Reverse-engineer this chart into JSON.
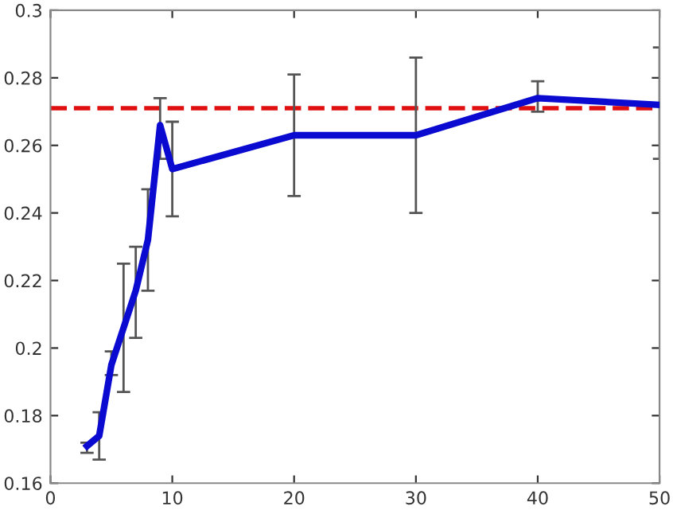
{
  "chart_data": {
    "type": "line",
    "x": [
      3,
      4,
      5,
      6,
      7,
      8,
      9,
      10,
      20,
      30,
      40,
      50
    ],
    "series": [
      {
        "color": "#0a0ad0",
        "values": [
          0.171,
          0.174,
          0.195,
          0.206,
          0.217,
          0.232,
          0.266,
          0.253,
          0.263,
          0.263,
          0.274,
          0.272
        ],
        "errors": [
          [
            0.169,
            0.172
          ],
          [
            0.167,
            0.181
          ],
          [
            0.192,
            0.199
          ],
          [
            0.187,
            0.225
          ],
          [
            0.203,
            0.23
          ],
          [
            0.217,
            0.247
          ],
          [
            0.256,
            0.274
          ],
          [
            0.239,
            0.267
          ],
          [
            0.245,
            0.281
          ],
          [
            0.24,
            0.286
          ],
          [
            0.27,
            0.279
          ],
          [
            0.256,
            0.289
          ]
        ]
      }
    ],
    "xlim": [
      0,
      50
    ],
    "xticks": [
      0,
      10,
      20,
      30,
      40,
      50
    ],
    "ylim": [
      0.16,
      0.3
    ],
    "yticks": [
      0.16,
      0.18,
      {
        "value": 0.2,
        "label": "0.2"
      },
      0.22,
      0.24,
      0.26,
      0.28,
      {
        "value": 0.3,
        "label": "0.3"
      }
    ],
    "ref_lines": [
      {
        "axis": "y",
        "value": 0.271,
        "color": "#e01010",
        "line_style": "dashed"
      }
    ],
    "grid": false,
    "legend": false,
    "marker": "none",
    "line_style": "solid"
  }
}
